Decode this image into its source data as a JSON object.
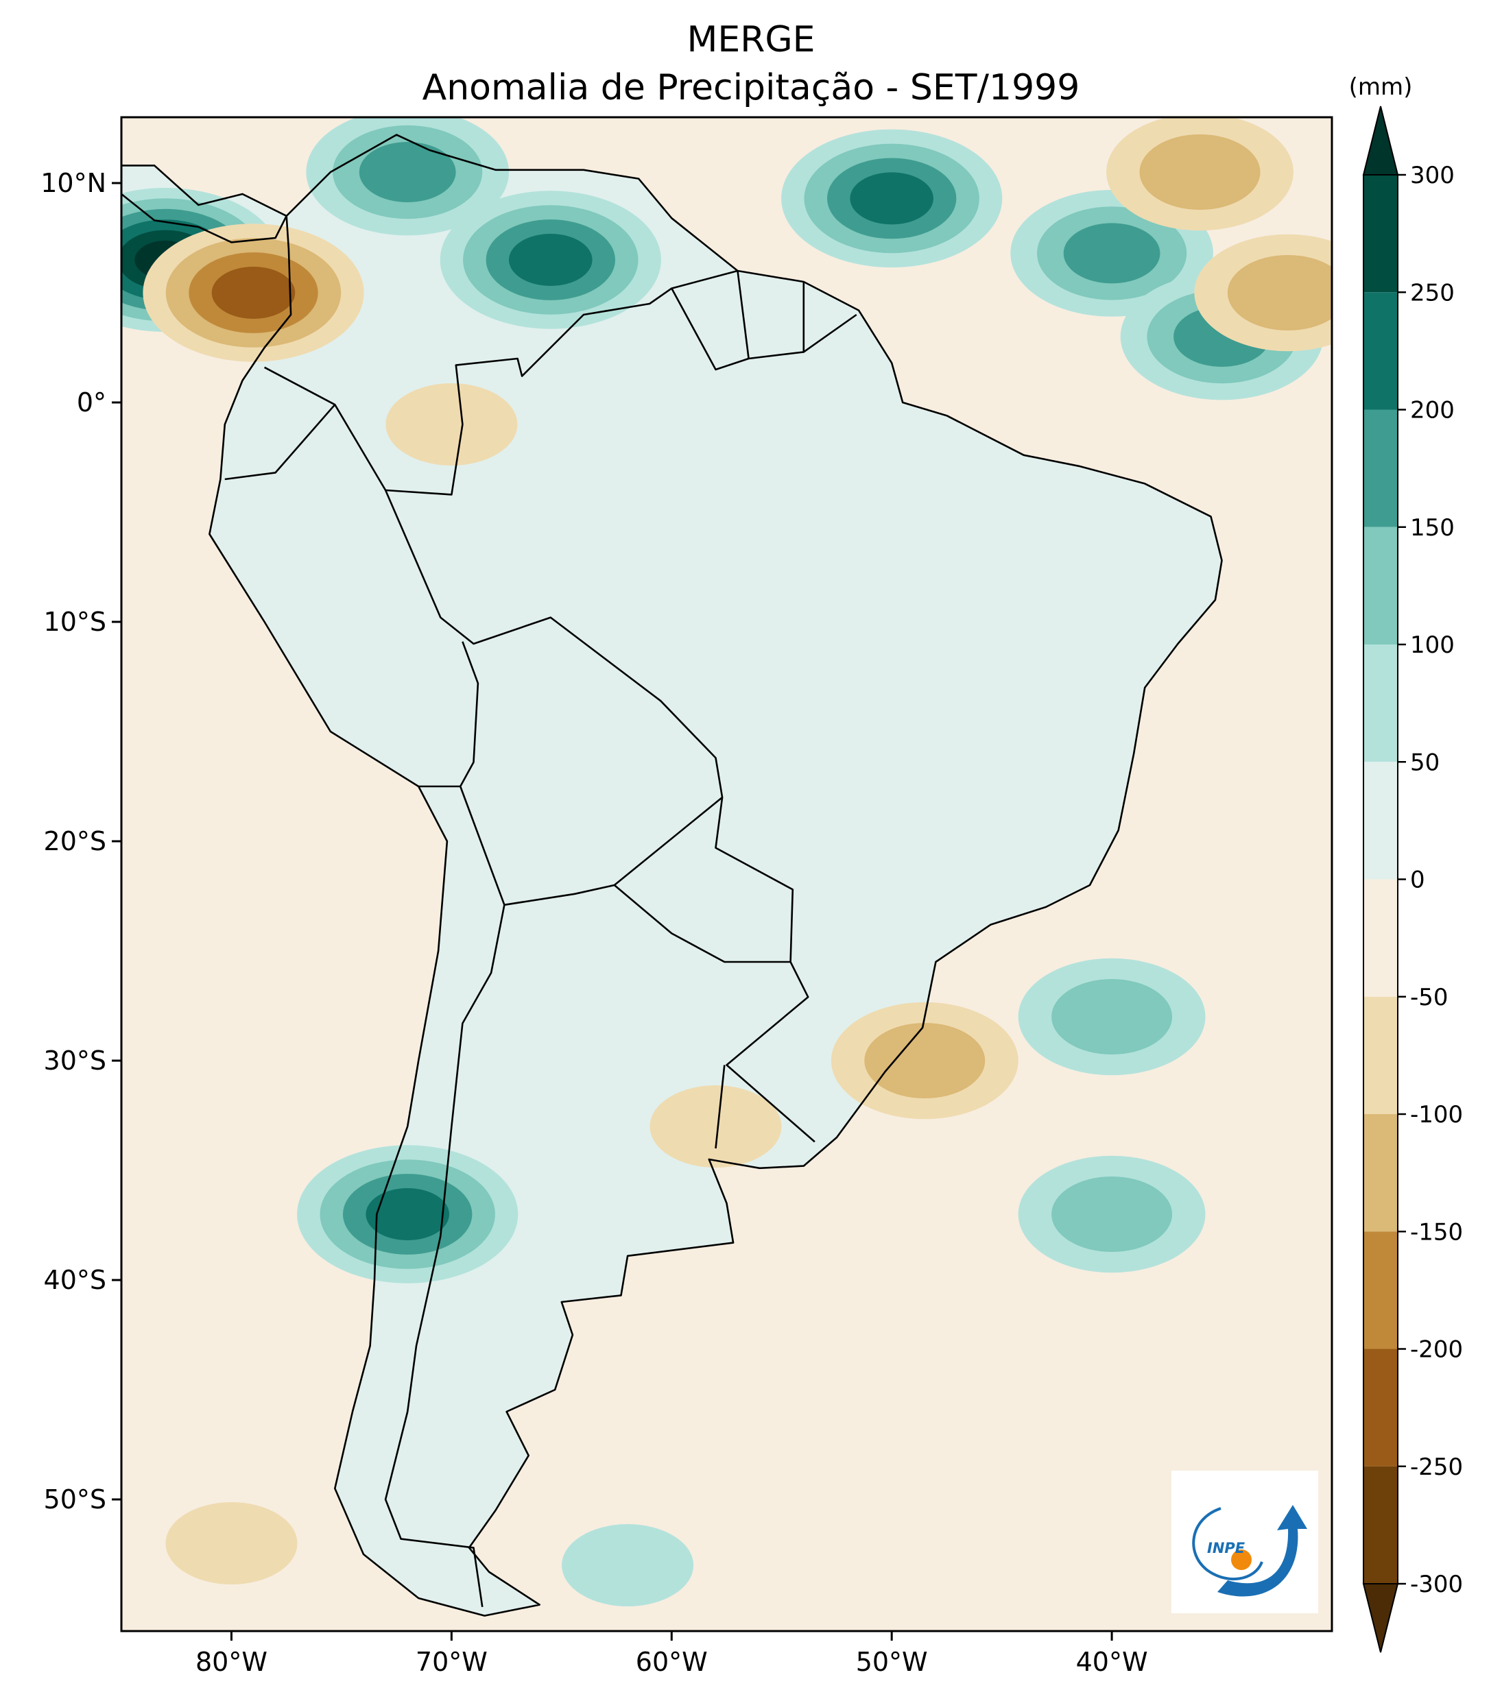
{
  "title": {
    "line1": "MERGE",
    "line2": "Anomalia de Precipitação - SET/1999"
  },
  "map": {
    "lon_range": [
      -85,
      -30
    ],
    "lat_range": [
      -56,
      13
    ],
    "lon_ticks": [
      {
        "value": -80,
        "label": "80°W"
      },
      {
        "value": -70,
        "label": "70°W"
      },
      {
        "value": -60,
        "label": "60°W"
      },
      {
        "value": -50,
        "label": "50°W"
      },
      {
        "value": -40,
        "label": "40°W"
      }
    ],
    "lat_ticks": [
      {
        "value": 10,
        "label": "10°N"
      },
      {
        "value": 0,
        "label": "0°"
      },
      {
        "value": -10,
        "label": "10°S"
      },
      {
        "value": -20,
        "label": "20°S"
      },
      {
        "value": -30,
        "label": "30°S"
      },
      {
        "value": -40,
        "label": "40°S"
      },
      {
        "value": -50,
        "label": "50°S"
      }
    ]
  },
  "colorbar": {
    "unit": "(mm)",
    "extend": "both",
    "levels": [
      300,
      250,
      200,
      150,
      100,
      50,
      0,
      -50,
      -100,
      -150,
      -200,
      -250,
      -300
    ],
    "tick_labels": [
      "300",
      "250",
      "200",
      "150",
      "100",
      "50",
      "0",
      "-50",
      "-100",
      "-150",
      "-200",
      "-250",
      "-300"
    ],
    "colors": [
      "#00352c",
      "#014d40",
      "#0f7368",
      "#3f9c90",
      "#80c9bc",
      "#b3e2db",
      "#e1f0ed",
      "#f7eee0",
      "#efdbb0",
      "#dbb976",
      "#c0893a",
      "#995b17",
      "#6e400a",
      "#4b2c06"
    ]
  },
  "logo": {
    "text": "INPE"
  },
  "chart_data": {
    "type": "heatmap",
    "title": "MERGE — Anomalia de Precipitação - SET/1999",
    "colorbar_unit": "(mm)",
    "levels": [
      -300,
      -250,
      -200,
      -150,
      -100,
      -50,
      0,
      50,
      100,
      150,
      200,
      250,
      300
    ],
    "xlim": [
      -85,
      -30
    ],
    "ylim": [
      -56,
      13
    ],
    "anomaly_regions": [
      {
        "lon": -83,
        "lat": 6.5,
        "value": 300
      },
      {
        "lon": -79,
        "lat": 5,
        "value": -200
      },
      {
        "lon": -65.5,
        "lat": 6.5,
        "value": 200
      },
      {
        "lon": -72,
        "lat": 10.5,
        "value": 150
      },
      {
        "lon": -50,
        "lat": 9.3,
        "value": 200
      },
      {
        "lon": -40,
        "lat": 6.8,
        "value": 150
      },
      {
        "lon": -35,
        "lat": 3,
        "value": 150
      },
      {
        "lon": -36,
        "lat": 10.5,
        "value": -100
      },
      {
        "lon": -32,
        "lat": 5,
        "value": -100
      },
      {
        "lon": -70,
        "lat": -1,
        "value": -50
      },
      {
        "lon": -72,
        "lat": -37,
        "value": 200
      },
      {
        "lon": -48.5,
        "lat": -30,
        "value": -100
      },
      {
        "lon": -58,
        "lat": -33,
        "value": -50
      },
      {
        "lon": -40,
        "lat": -28,
        "value": 100
      },
      {
        "lon": -40,
        "lat": -37,
        "value": 100
      },
      {
        "lon": -62,
        "lat": -53,
        "value": 50
      },
      {
        "lon": -80,
        "lat": -52,
        "value": -50
      }
    ]
  }
}
